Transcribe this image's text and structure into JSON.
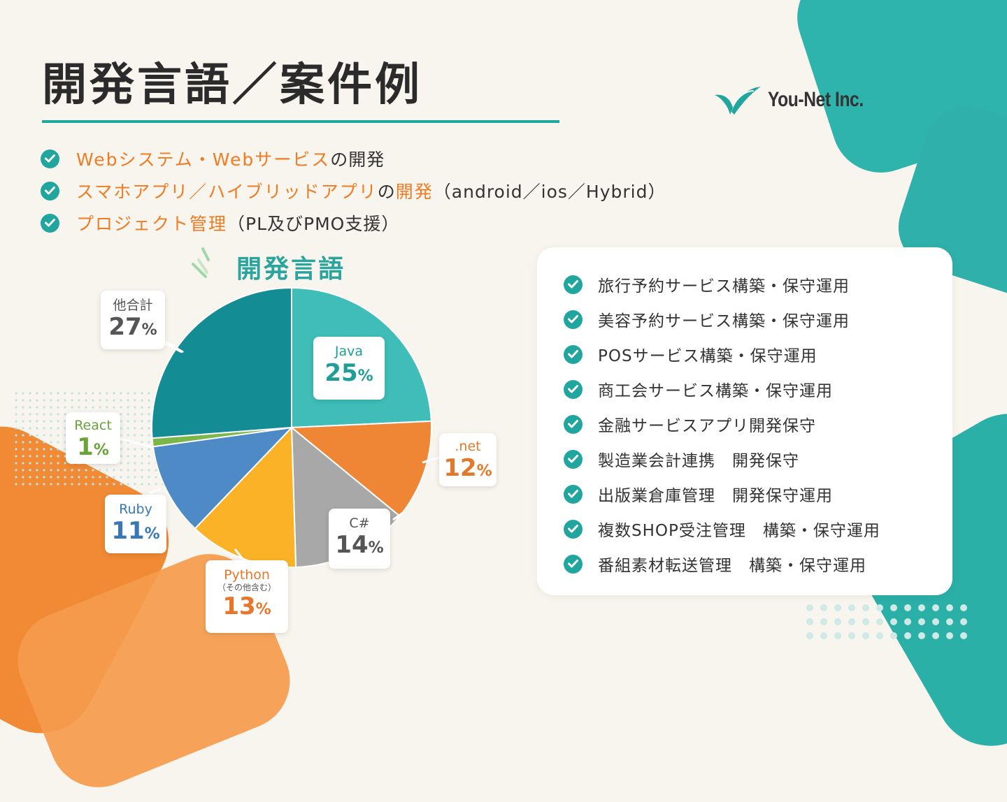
{
  "page": {
    "title": "開発言語／案件例",
    "logo_text": "You-Net Inc."
  },
  "bullets": [
    {
      "highlight": "Webシステム・Webサービス",
      "rest": "の開発"
    },
    {
      "highlight": "スマホアプリ／ハイブリッドアプリ",
      "mid": "の",
      "highlight2": "開発",
      "rest": "（android／ios／Hybrid）"
    },
    {
      "highlight": "プロジェクト管理",
      "rest": "（PL及びPMO支援）"
    }
  ],
  "chart_data": {
    "type": "pie",
    "title": "開発言語",
    "slices": [
      {
        "label": "Java",
        "value": 25,
        "color": "#40bdb8",
        "text_color": "#1f9e98"
      },
      {
        "label": ".net",
        "value": 12,
        "color": "#ee8636",
        "text_color": "#e4782a"
      },
      {
        "label": "C#",
        "value": 14,
        "color": "#a8a8a8",
        "text_color": "#555555"
      },
      {
        "label": "Python",
        "sublabel": "（その他含む）",
        "value": 13,
        "color": "#fbb226",
        "text_color": "#e8762a"
      },
      {
        "label": "Ruby",
        "value": 11,
        "color": "#4d8ac6",
        "text_color": "#3978b8"
      },
      {
        "label": "React",
        "value": 1,
        "color": "#7ab648",
        "text_color": "#6aa33a"
      },
      {
        "label": "他合計",
        "value": 27,
        "color": "#138c94",
        "text_color": "#555555"
      }
    ],
    "unit": "%"
  },
  "projects": [
    "旅行予約サービス構築・保守運用",
    "美容予約サービス構築・保守運用",
    "POSサービス構築・保守運用",
    "商工会サービス構築・保守運用",
    "金融サービスアプリ開発保守",
    "製造業会計連携　開発保守",
    "出版業倉庫管理　開発保守運用",
    "複数SHOP受注管理　構築・保守運用",
    "番組素材転送管理　構築・保守運用"
  ],
  "colors": {
    "accent_teal": "#22a7a2",
    "accent_orange": "#ef7c22"
  },
  "icons": {
    "check": "check-circle-icon",
    "logo": "leaf-logo-icon"
  }
}
